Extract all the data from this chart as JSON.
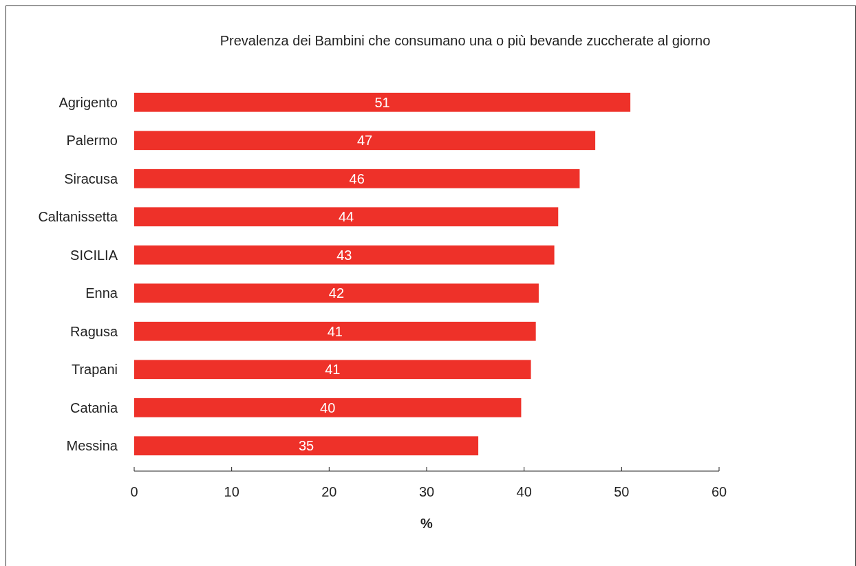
{
  "chart_data": {
    "type": "bar",
    "orientation": "horizontal",
    "title": "Prevalenza dei Bambini che consumano una o più bevande zuccherate al giorno",
    "xlabel": "%",
    "categories": [
      "Agrigento",
      "Palermo",
      "Siracusa",
      "Caltanissetta",
      "SICILIA",
      "Enna",
      "Ragusa",
      "Trapani",
      "Catania",
      "Messina"
    ],
    "values": [
      50.9,
      47.3,
      45.7,
      43.5,
      43.1,
      41.5,
      41.2,
      40.7,
      39.7,
      35.3
    ],
    "value_labels": [
      "51",
      "47",
      "46",
      "44",
      "43",
      "42",
      "41",
      "41",
      "40",
      "35"
    ],
    "color": "#ee3129",
    "xlim": [
      0,
      60
    ],
    "xticks": [
      0,
      10,
      20,
      30,
      40,
      50,
      60
    ],
    "grid": false
  }
}
